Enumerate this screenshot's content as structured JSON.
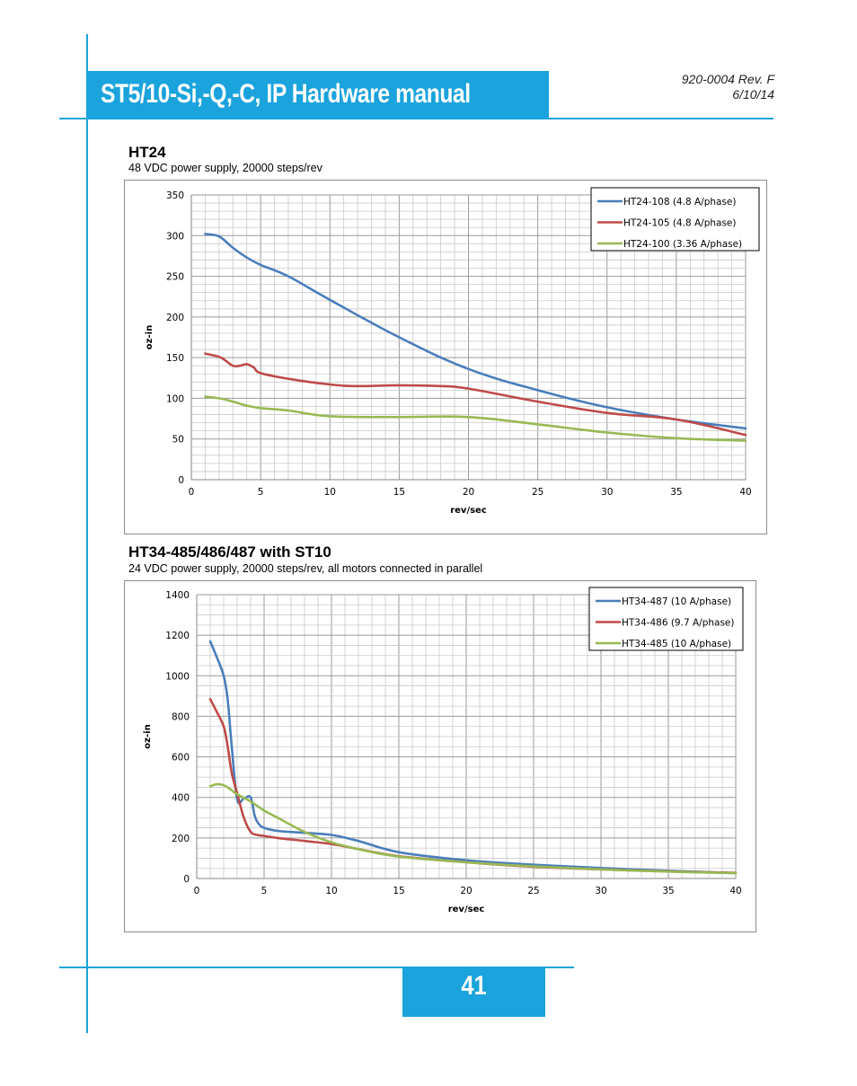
{
  "header": {
    "title": "ST5/10-Si,-Q,-C, IP Hardware manual",
    "doc_number": "920-0004 Rev. F",
    "date": "6/10/14"
  },
  "footer": {
    "page_number": "41"
  },
  "colors": {
    "accent": "#1aa3dc",
    "series_blue": "#4a7ebb",
    "series_red": "#be4b48",
    "series_green": "#98b954"
  },
  "sections": [
    {
      "title": "HT24",
      "subtitle": "48 VDC power supply, 20000 steps/rev"
    },
    {
      "title": "HT34-485/486/487 with ST10",
      "subtitle": "24 VDC power supply, 20000 steps/rev, all motors connected in parallel"
    }
  ],
  "chart_data": [
    {
      "type": "line",
      "xlabel": "rev/sec",
      "ylabel": "oz-in",
      "xlim": [
        0,
        40
      ],
      "ylim": [
        0,
        350
      ],
      "xticks": [
        0,
        5,
        10,
        15,
        20,
        25,
        30,
        35,
        40
      ],
      "yticks": [
        0,
        50,
        100,
        150,
        200,
        250,
        300,
        350
      ],
      "grid": true,
      "legend_position": "top-right",
      "series": [
        {
          "name": "HT24-108 (4.8 A/phase)",
          "color": "#4a7ebb",
          "x": [
            1,
            2,
            3,
            4,
            5,
            7,
            10,
            15,
            20,
            25,
            30,
            35,
            40
          ],
          "y": [
            302,
            299,
            285,
            273,
            264,
            250,
            221,
            175,
            136,
            110,
            89,
            74,
            63
          ]
        },
        {
          "name": "HT24-105 (4.8 A/phase)",
          "color": "#be4b48",
          "x": [
            1,
            2,
            2.5,
            3,
            3.5,
            4,
            4.5,
            5,
            7,
            10,
            12,
            15,
            18,
            20,
            25,
            30,
            35,
            40
          ],
          "y": [
            155,
            151,
            146,
            140,
            140,
            142,
            138,
            131,
            124,
            117,
            115,
            116,
            115,
            112,
            96,
            82,
            74,
            55
          ]
        },
        {
          "name": "HT24-100 (3.36 A/phase)",
          "color": "#98b954",
          "x": [
            1,
            2,
            3,
            4,
            5,
            7,
            10,
            15,
            20,
            25,
            30,
            35,
            40
          ],
          "y": [
            102,
            100,
            96,
            91,
            88,
            85,
            78,
            77,
            77,
            68,
            58,
            51,
            48
          ]
        }
      ]
    },
    {
      "type": "line",
      "xlabel": "rev/sec",
      "ylabel": "oz-in",
      "xlim": [
        0,
        40
      ],
      "ylim": [
        0,
        1400
      ],
      "xticks": [
        0,
        5,
        10,
        15,
        20,
        25,
        30,
        35,
        40
      ],
      "yticks": [
        0,
        200,
        400,
        600,
        800,
        1000,
        1200,
        1400
      ],
      "grid": true,
      "legend_position": "top-right",
      "series": [
        {
          "name": "HT34-487 (10 A/phase)",
          "color": "#4a7ebb",
          "x": [
            1,
            1.5,
            2,
            2.3,
            2.6,
            3,
            3.5,
            4,
            4.3,
            4.6,
            5,
            6,
            8,
            10,
            12,
            15,
            20,
            25,
            30,
            35,
            40
          ],
          "y": [
            1170,
            1090,
            1000,
            880,
            650,
            390,
            395,
            400,
            310,
            270,
            250,
            235,
            225,
            215,
            185,
            130,
            90,
            68,
            52,
            38,
            27
          ]
        },
        {
          "name": "HT34-486 (9.7 A/phase)",
          "color": "#be4b48",
          "x": [
            1,
            1.5,
            2,
            2.3,
            2.6,
            3,
            3.5,
            4,
            4.5,
            5,
            6,
            8,
            10,
            12,
            15,
            20,
            25,
            30,
            35,
            40
          ],
          "y": [
            885,
            820,
            750,
            650,
            520,
            420,
            300,
            230,
            215,
            210,
            200,
            185,
            170,
            145,
            110,
            80,
            58,
            45,
            35,
            28
          ]
        },
        {
          "name": "HT34-485 (10 A/phase)",
          "color": "#98b954",
          "x": [
            1,
            1.5,
            2,
            2.5,
            3,
            4,
            5,
            6,
            8,
            10,
            12,
            15,
            20,
            25,
            30,
            35,
            40
          ],
          "y": [
            455,
            465,
            460,
            440,
            415,
            380,
            335,
            300,
            230,
            178,
            145,
            108,
            80,
            60,
            45,
            34,
            26
          ]
        }
      ]
    }
  ]
}
